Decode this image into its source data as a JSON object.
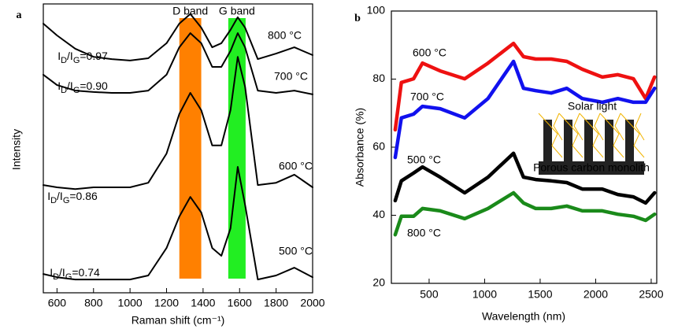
{
  "chart_data": [
    {
      "type": "line",
      "panel_label": "a",
      "xlabel": "Raman shift (cm⁻¹)",
      "ylabel": "Intensity",
      "xlim": [
        525,
        2000
      ],
      "ylim": [
        0,
        100
      ],
      "xticks": [
        600,
        800,
        1000,
        1200,
        1400,
        1600,
        1800,
        2000
      ],
      "bands": [
        {
          "label": "D band",
          "range": [
            1270,
            1390
          ],
          "color": "#ff8000"
        },
        {
          "label": "G band",
          "range": [
            1538,
            1633
          ],
          "color": "#22ee22"
        }
      ],
      "x": [
        525,
        600,
        700,
        800,
        900,
        1000,
        1100,
        1200,
        1270,
        1330,
        1390,
        1450,
        1500,
        1550,
        1590,
        1630,
        1700,
        1800,
        1900,
        2000
      ],
      "series": [
        {
          "name": "800 °C",
          "color": "#000000",
          "values": [
            93.2,
            89.1,
            84.5,
            81.7,
            80.9,
            80.4,
            81.2,
            86.4,
            93.2,
            96.5,
            91.8,
            85.0,
            86.4,
            91.0,
            95.4,
            91.8,
            80.9,
            82.8,
            85.0,
            82.3
          ]
        },
        {
          "name": "700 °C",
          "color": "#000000",
          "values": [
            75.5,
            71.9,
            70.0,
            69.5,
            69.2,
            69.2,
            70.0,
            75.5,
            85.0,
            89.9,
            86.4,
            78.2,
            78.2,
            83.7,
            89.9,
            85.0,
            70.0,
            69.2,
            70.0,
            68.7
          ]
        },
        {
          "name": "600 °C",
          "color": "#000000",
          "values": [
            37.3,
            36.5,
            35.9,
            36.5,
            36.5,
            36.5,
            38.1,
            48.2,
            61.9,
            69.2,
            63.2,
            51.0,
            51.0,
            63.2,
            81.7,
            71.4,
            37.3,
            38.1,
            40.9,
            36.5
          ]
        },
        {
          "name": "500 °C",
          "color": "#000000",
          "values": [
            6.5,
            5.4,
            4.6,
            4.6,
            4.6,
            4.6,
            6.0,
            15.5,
            26.4,
            33.2,
            27.8,
            15.5,
            12.8,
            22.3,
            43.6,
            30.5,
            4.6,
            6.0,
            8.7,
            5.4
          ]
        }
      ],
      "annotations": [
        "ID/IG=0.97",
        "ID/IG=0.90",
        "ID/IG=0.86",
        "ID/IG=0.74"
      ]
    },
    {
      "type": "line",
      "panel_label": "b",
      "xlabel": "Wavelength (nm)",
      "ylabel": "Absorbance (%)",
      "xlim": [
        160,
        2550
      ],
      "ylim": [
        20,
        100
      ],
      "xticks": [
        500,
        1000,
        1500,
        2000,
        2500
      ],
      "yticks": [
        20,
        40,
        60,
        80,
        100
      ],
      "x": [
        195,
        250,
        360,
        440,
        600,
        820,
        1030,
        1260,
        1350,
        1460,
        1600,
        1740,
        1880,
        2060,
        2200,
        2340,
        2450,
        2530
      ],
      "series": [
        {
          "name": "600 °C",
          "color": "#ee1111",
          "values": [
            65.1,
            79.0,
            80.1,
            84.7,
            82.4,
            80.1,
            84.7,
            90.5,
            86.6,
            85.9,
            85.9,
            85.2,
            82.9,
            80.6,
            81.3,
            80.1,
            74.3,
            80.6
          ]
        },
        {
          "name": "700 °C",
          "color": "#1111ee",
          "values": [
            57.0,
            68.6,
            69.7,
            72.0,
            71.3,
            68.6,
            74.3,
            85.2,
            77.3,
            76.6,
            75.9,
            77.3,
            74.3,
            73.2,
            74.3,
            73.2,
            73.2,
            77.3
          ]
        },
        {
          "name": "500 °C",
          "color": "#000000",
          "values": [
            44.3,
            50.1,
            52.4,
            54.2,
            51.2,
            46.6,
            51.2,
            58.2,
            51.2,
            50.5,
            50.1,
            49.6,
            47.7,
            47.7,
            46.1,
            45.4,
            43.6,
            46.6
          ]
        },
        {
          "name": "800 °C",
          "color": "#1a8a1a",
          "values": [
            34.3,
            39.7,
            39.7,
            42.0,
            41.3,
            39.0,
            42.0,
            46.6,
            43.6,
            42.0,
            42.0,
            42.7,
            41.3,
            41.3,
            40.3,
            39.7,
            38.5,
            40.3
          ]
        }
      ],
      "inset": {
        "labels": [
          "Solar light",
          "Porous carbon monolith"
        ]
      }
    }
  ]
}
